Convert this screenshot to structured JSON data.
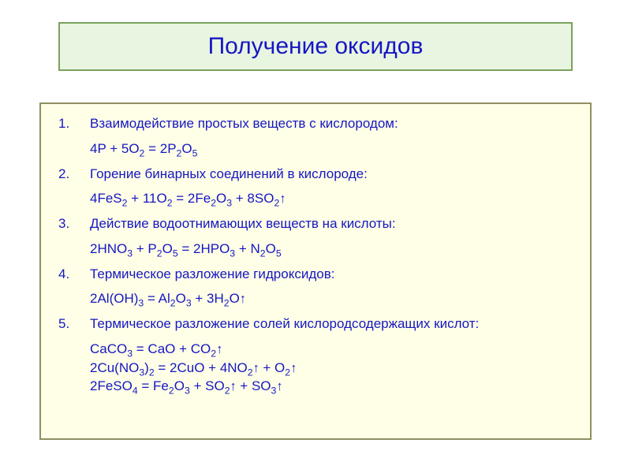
{
  "colors": {
    "title_bg": "#e8f5e0",
    "title_border": "#7aa25c",
    "title_text": "#1616c4",
    "content_bg": "#feffe6",
    "content_border": "#8f8f64",
    "body_text": "#1616c4"
  },
  "title": "Получение оксидов",
  "methods": [
    {
      "title": "Взаимодействие простых веществ с кислородом:",
      "equations": [
        "4P + 5O₂ = 2P₂O₅"
      ],
      "tight": false
    },
    {
      "title": "Горение бинарных соединений в кислороде:",
      "equations": [
        "4FeS₂ + 11O₂ = 2Fe₂O₃ + 8SO₂↑"
      ],
      "tight": false
    },
    {
      "title": "Действие водоотнимающих веществ на кислоты:",
      "equations": [
        "2HNO₃ + P₂O₅ = 2HPO₃ + N₂O₅"
      ],
      "tight": false
    },
    {
      "title": "Термическое разложение гидроксидов:",
      "equations": [
        "2Al(OH)₃ = Al₂O₃ + 3H₂O↑"
      ],
      "tight": false
    },
    {
      "title": "Термическое разложение солей кислородсодержащих кислот:",
      "equations": [
        "CaCO₃ = CaO + CO₂↑",
        "2Cu(NO₃)₂ = 2CuO + 4NO₂↑ + O₂↑",
        "2FeSO₄ = Fe₂O₃ + SO₂↑ + SO₃↑"
      ],
      "tight": true
    }
  ]
}
